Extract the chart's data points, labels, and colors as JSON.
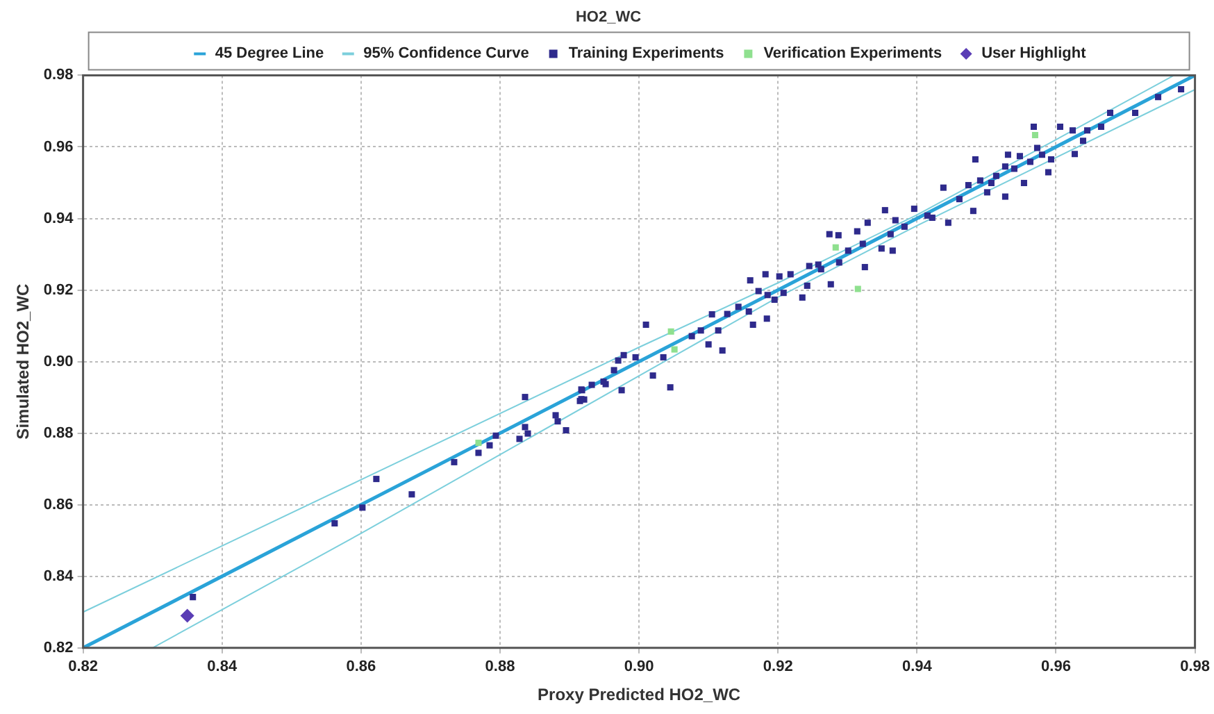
{
  "chart_data": {
    "type": "scatter",
    "title": "HO2_WC",
    "xlabel": "Proxy Predicted HO2_WC",
    "ylabel": "Simulated HO2_WC",
    "xlim": [
      0.82,
      0.98
    ],
    "ylim": [
      0.82,
      0.98
    ],
    "xticks": [
      0.82,
      0.84,
      0.86,
      0.88,
      {
        "value": 0.9,
        "label": "0.90"
      },
      0.92,
      0.94,
      0.96,
      0.98
    ],
    "yticks": [
      0.82,
      0.84,
      0.86,
      0.88,
      {
        "value": 0.9,
        "label": "0.90"
      },
      0.92,
      0.94,
      0.96,
      0.98
    ],
    "grid": true,
    "legend": "top",
    "series": [
      {
        "type": "line",
        "name": "45 Degree Line",
        "color": "#2aa3d8",
        "marker": "none",
        "line_style": "solid",
        "x": [
          0.82,
          0.98
        ],
        "values": [
          0.82,
          0.98
        ]
      },
      {
        "type": "line",
        "name": "95% Confidence Curve",
        "color": "#7ccfdc",
        "marker": "none",
        "line_style": "solid",
        "x": [
          0.82,
          0.86,
          0.9,
          0.92,
          0.94,
          0.96,
          0.977
        ],
        "values": [
          0.83,
          0.867,
          0.904,
          0.922,
          0.941,
          0.962,
          0.98
        ]
      },
      {
        "type": "line",
        "color": "#7ccfdc",
        "marker": "none",
        "line_style": "solid",
        "x": [
          0.83,
          0.86,
          0.9,
          0.92,
          0.94,
          0.96,
          0.98
        ],
        "values": [
          0.82,
          0.852,
          0.896,
          0.918,
          0.938,
          0.957,
          0.976
        ]
      },
      {
        "type": "scatter",
        "name": "Training Experiments",
        "color": "#2e2a8c",
        "marker": "square",
        "x": [
          0.8358,
          0.8562,
          0.8602,
          0.8622,
          0.8673,
          0.8734,
          0.8769,
          0.8785,
          0.8794,
          0.8828,
          0.8836,
          0.8836,
          0.884,
          0.888,
          0.8883,
          0.8895,
          0.8915,
          0.8921,
          0.8918,
          0.8975,
          0.8932,
          0.8952,
          0.901,
          0.9045,
          0.902,
          0.9035,
          0.8995,
          0.8978,
          0.897,
          0.8964,
          0.8949,
          0.8917,
          0.8917,
          0.9076,
          0.9089,
          0.91,
          0.9105,
          0.912,
          0.9114,
          0.9127,
          0.9143,
          0.9158,
          0.9164,
          0.9184,
          0.916,
          0.9182,
          0.9172,
          0.9185,
          0.9195,
          0.9202,
          0.9208,
          0.9218,
          0.9235,
          0.9242,
          0.9245,
          0.9258,
          0.9276,
          0.9287,
          0.9262,
          0.9288,
          0.9301,
          0.9325,
          0.9322,
          0.9349,
          0.9365,
          0.9568,
          0.9606,
          0.9354,
          0.9314,
          0.9274,
          0.9369,
          0.9396,
          0.9415,
          0.9438,
          0.9445,
          0.9461,
          0.9474,
          0.9484,
          0.9481,
          0.9491,
          0.9507,
          0.9527,
          0.9527,
          0.9531,
          0.9554,
          0.9548,
          0.9563,
          0.958,
          0.9589,
          0.9624,
          0.9627,
          0.9645,
          0.9665,
          0.9678,
          0.9714,
          0.9747,
          0.978,
          0.9382,
          0.9422,
          0.9362,
          0.9329,
          0.9501,
          0.9514,
          0.954,
          0.9573,
          0.9593,
          0.9639
        ],
        "values": [
          0.8342,
          0.8548,
          0.8592,
          0.8672,
          0.8629,
          0.8719,
          0.8745,
          0.8766,
          0.8793,
          0.8784,
          0.8901,
          0.8817,
          0.8799,
          0.885,
          0.8833,
          0.8808,
          0.889,
          0.8894,
          0.892,
          0.892,
          0.8935,
          0.8937,
          0.9103,
          0.8928,
          0.8961,
          0.9012,
          0.9012,
          0.9018,
          0.9003,
          0.8976,
          0.8944,
          0.8922,
          0.8895,
          0.9071,
          0.9087,
          0.9048,
          0.9132,
          0.9031,
          0.9087,
          0.9133,
          0.9153,
          0.914,
          0.9103,
          0.912,
          0.9227,
          0.9244,
          0.9197,
          0.9186,
          0.9173,
          0.9238,
          0.9192,
          0.9244,
          0.9179,
          0.9212,
          0.9267,
          0.9271,
          0.9216,
          0.9353,
          0.9258,
          0.9277,
          0.931,
          0.9264,
          0.9329,
          0.9316,
          0.931,
          0.9656,
          0.9656,
          0.9423,
          0.9364,
          0.9356,
          0.9395,
          0.9427,
          0.9408,
          0.9486,
          0.9388,
          0.9454,
          0.9493,
          0.9565,
          0.9421,
          0.9506,
          0.9499,
          0.9545,
          0.9461,
          0.9578,
          0.9499,
          0.9574,
          0.9558,
          0.9578,
          0.9529,
          0.9646,
          0.958,
          0.9646,
          0.9656,
          0.9695,
          0.9695,
          0.9739,
          0.9761,
          0.9377,
          0.9402,
          0.9356,
          0.9388,
          0.9473,
          0.9519,
          0.9539,
          0.9597,
          0.9565,
          0.9617
        ]
      },
      {
        "type": "scatter",
        "name": "Verification Experiments",
        "color": "#8fe08f",
        "marker": "square",
        "x": [
          0.8769,
          0.9046,
          0.9051,
          0.9283,
          0.9315,
          0.957
        ],
        "values": [
          0.8773,
          0.9084,
          0.9034,
          0.9319,
          0.9203,
          0.9633
        ]
      },
      {
        "type": "scatter",
        "name": "User Highlight",
        "color": "#5a3db5",
        "marker": "diamond",
        "x": [
          0.835
        ],
        "values": [
          0.829
        ]
      }
    ]
  }
}
